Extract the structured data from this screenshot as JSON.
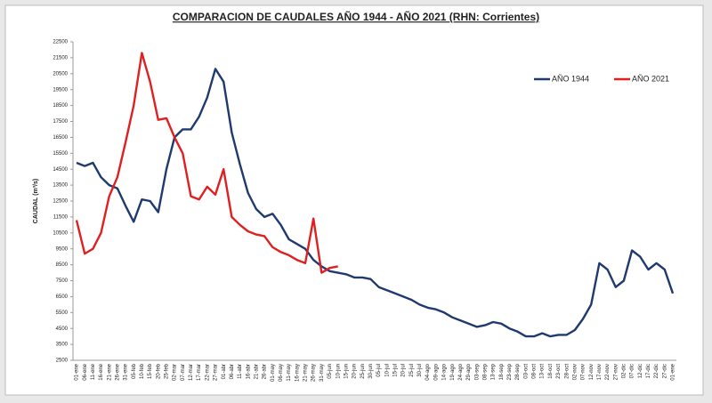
{
  "chart_data": {
    "type": "line",
    "title": "COMPARACION DE CAUDALES AÑO 1944 - AÑO 2021 (RHN: Corrientes)",
    "y_label": "CAUDAL  (m³/s)",
    "categories": [
      "01-ene",
      "06-ene",
      "11-ene",
      "16-ene",
      "21-ene",
      "26-ene",
      "31-ene",
      "05-feb",
      "10-feb",
      "15-feb",
      "20-feb",
      "25-feb",
      "02-mar",
      "07-mar",
      "12-mar",
      "17-mar",
      "22-mar",
      "27-mar",
      "01-abr",
      "06-abr",
      "11-abr",
      "16-abr",
      "21-abr",
      "26-abr",
      "01-may",
      "06-may",
      "11-may",
      "16-may",
      "21-may",
      "26-may",
      "31-may",
      "05-jun",
      "10-jun",
      "15-jun",
      "20-jun",
      "25-jun",
      "30-jun",
      "05-jul",
      "10-jul",
      "15-jul",
      "20-jul",
      "25-jul",
      "30-jul",
      "04-ago",
      "09-ago",
      "14-ago",
      "19-ago",
      "24-ago",
      "29-ago",
      "03-sep",
      "08-sep",
      "13-sep",
      "18-sep",
      "23-sep",
      "28-sep",
      "03-oct",
      "08-oct",
      "13-oct",
      "18-oct",
      "23-oct",
      "28-oct",
      "02-nov",
      "07-nov",
      "12-nov",
      "17-nov",
      "22-nov",
      "27-nov",
      "02-dic",
      "07-dic",
      "12-dic",
      "17-dic",
      "22-dic",
      "27-dic",
      "01-ene"
    ],
    "series": [
      {
        "name": "AÑO 1944",
        "color": "#1f3a6e",
        "values": [
          14900,
          14700,
          14900,
          14000,
          13500,
          13300,
          12200,
          11200,
          12600,
          12500,
          11800,
          14500,
          16500,
          17000,
          17000,
          17800,
          19000,
          20800,
          20000,
          16800,
          14800,
          13000,
          12000,
          11500,
          11700,
          11000,
          10100,
          9800,
          9500,
          8800,
          8400,
          8100,
          8000,
          7900,
          7700,
          7700,
          7600,
          7100,
          6900,
          6700,
          6500,
          6300,
          6000,
          5800,
          5700,
          5500,
          5200,
          5000,
          4800,
          4600,
          4700,
          4900,
          4800,
          4500,
          4300,
          4000,
          4000,
          4200,
          4000,
          4100,
          4100,
          4400,
          5100,
          6000,
          8600,
          8200,
          7100,
          7500,
          9400,
          9000,
          8200,
          8600,
          8200,
          6700
        ]
      },
      {
        "name": "AÑO 2021",
        "color": "#e02020",
        "values": [
          11300,
          9200,
          9500,
          10500,
          12800,
          14000,
          16200,
          18500,
          21800,
          20000,
          17600,
          17700,
          16500,
          15500,
          12800,
          12600,
          13400,
          12900,
          14500,
          11500,
          11000,
          10600,
          10400,
          10300,
          9600,
          9300,
          9100,
          8800,
          8600,
          11400,
          8000,
          8300,
          8400,
          null,
          null,
          null,
          null,
          null,
          null,
          null,
          null,
          null,
          null,
          null,
          null,
          null,
          null,
          null,
          null,
          null,
          null,
          null,
          null,
          null,
          null,
          null,
          null,
          null,
          null,
          null,
          null,
          null,
          null,
          null,
          null,
          null,
          null,
          null,
          null,
          null,
          null,
          null,
          null,
          null
        ]
      }
    ],
    "ylim": [
      2500,
      22500
    ],
    "yticks": [
      2500,
      3500,
      4500,
      5500,
      6500,
      7500,
      8500,
      9500,
      10500,
      11500,
      12500,
      13500,
      14500,
      15500,
      16500,
      17500,
      18500,
      19500,
      20500,
      21500,
      22500
    ],
    "legend": "upper right"
  }
}
